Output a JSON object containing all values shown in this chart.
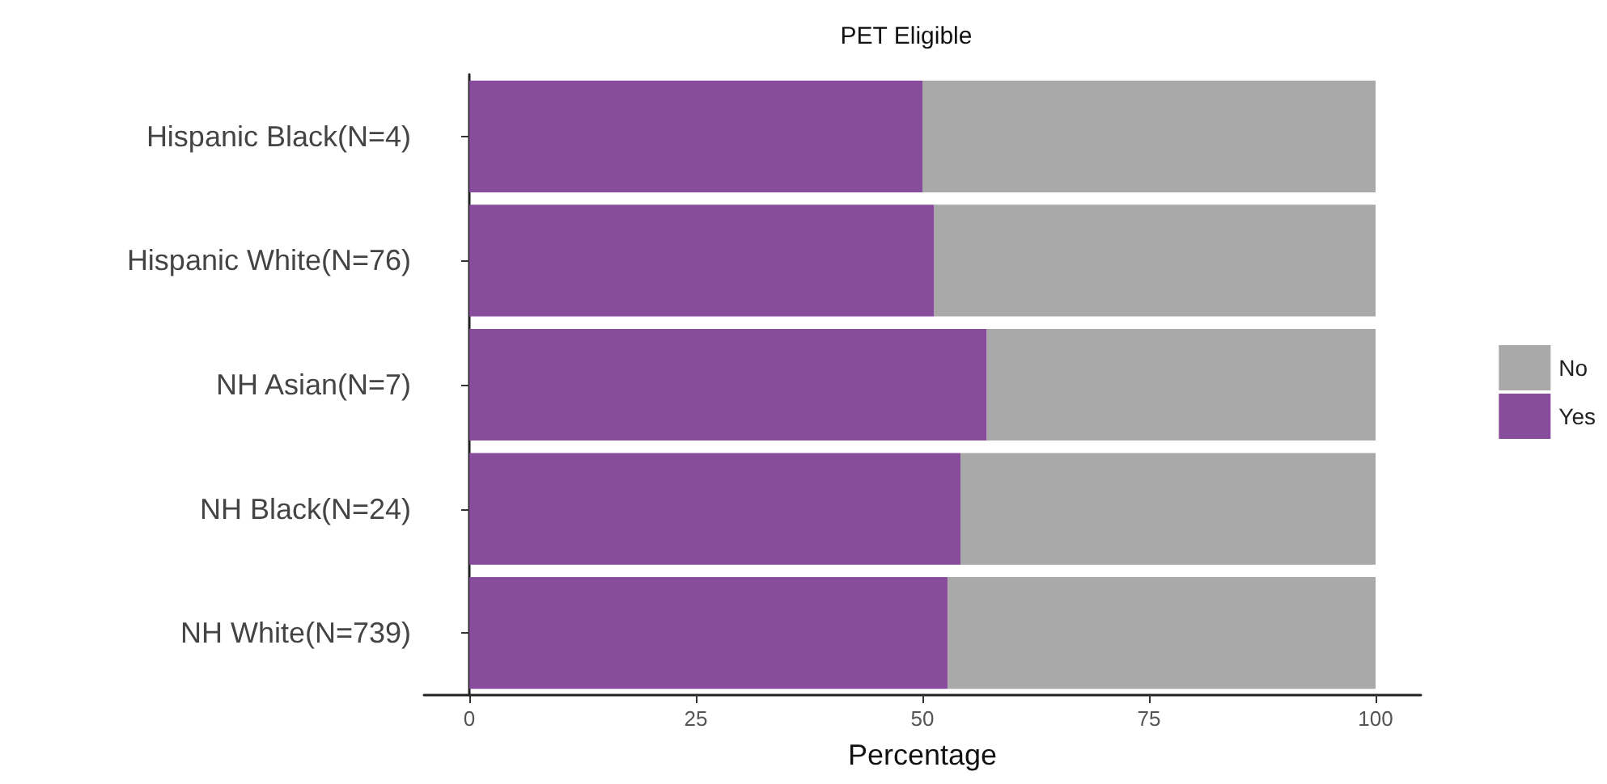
{
  "chart_data": {
    "type": "bar",
    "title": "PET Eligible",
    "xlabel": "Percentage",
    "orientation": "horizontal",
    "stacked": true,
    "categories": [
      "Hispanic Black(N=4)",
      "Hispanic White(N=76)",
      "NH Asian(N=7)",
      "NH Black(N=24)",
      "NH White(N=739)"
    ],
    "series": [
      {
        "name": "Yes",
        "color": "#874c9b",
        "values": [
          50,
          51.3,
          57.1,
          54.2,
          52.8
        ]
      },
      {
        "name": "No",
        "color": "#a8a9a8",
        "values": [
          50,
          48.7,
          42.9,
          45.8,
          47.2
        ]
      }
    ],
    "xlim": [
      -5,
      105
    ],
    "xticks": [
      0,
      25,
      50,
      75,
      100
    ],
    "grid": false,
    "legend": "right"
  }
}
